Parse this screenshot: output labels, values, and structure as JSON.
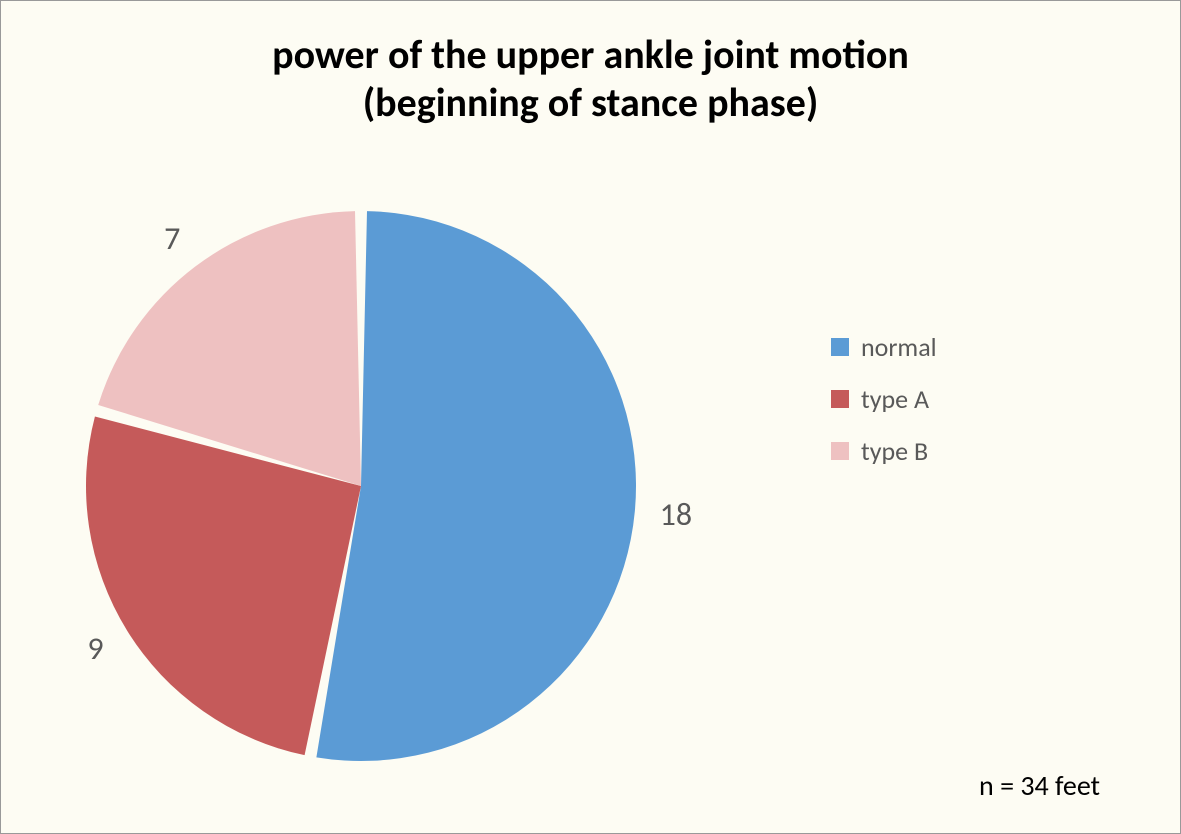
{
  "chart": {
    "type": "pie",
    "title_line1": "power of the upper ankle joint motion",
    "title_line2": "(beginning of stance phase)",
    "title_fontsize": 40,
    "title_color": "#000000",
    "background_color": "#fdfcf3",
    "border_color": "#999999",
    "slices": [
      {
        "label": "normal",
        "value": 18,
        "color": "#5b9bd5",
        "data_label": "18"
      },
      {
        "label": "type A",
        "value": 9,
        "color": "#c55a5a",
        "data_label": "9"
      },
      {
        "label": "type B",
        "value": 7,
        "color": "#eec1c1",
        "data_label": "7"
      }
    ],
    "slice_gap_deg": 2.5,
    "data_label_color": "#595959",
    "data_label_fontsize": 32,
    "legend": {
      "items": [
        {
          "label": "normal",
          "color": "#5b9bd5"
        },
        {
          "label": "type A",
          "color": "#c55a5a"
        },
        {
          "label": "type B",
          "color": "#eec1c1"
        }
      ],
      "label_fontsize": 26,
      "label_color": "#595959"
    },
    "footnote": "n = 34 feet",
    "footnote_fontsize": 28,
    "footnote_color": "#000000"
  }
}
